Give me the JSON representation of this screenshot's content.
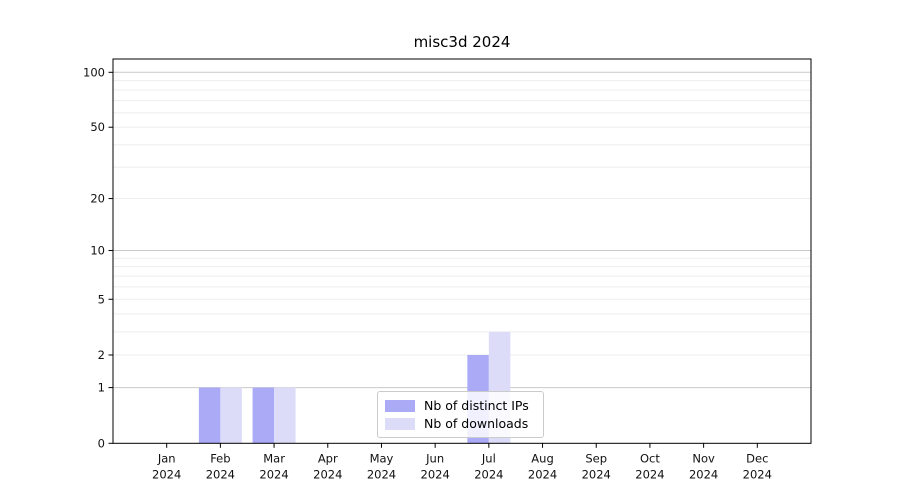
{
  "page": {
    "background_color": "#ffffff"
  },
  "chart_data": {
    "type": "bar",
    "title": "misc3d 2024",
    "xlabel": "",
    "ylabel": "",
    "year_label": "2024",
    "categories": [
      "Jan",
      "Feb",
      "Mar",
      "Apr",
      "May",
      "Jun",
      "Jul",
      "Aug",
      "Sep",
      "Oct",
      "Nov",
      "Dec"
    ],
    "series": [
      {
        "name": "Nb of distinct IPs",
        "color": "#aaaaf7",
        "values": [
          0,
          1,
          1,
          0,
          0,
          0,
          2,
          0,
          0,
          0,
          0,
          0
        ]
      },
      {
        "name": "Nb of downloads",
        "color": "#dcdcf8",
        "values": [
          0,
          1,
          1,
          0,
          0,
          0,
          3,
          0,
          0,
          0,
          0,
          0
        ]
      }
    ],
    "y_axis": {
      "scale": "log1p",
      "ylim": [
        0,
        118
      ],
      "tick_values": [
        0,
        1,
        2,
        5,
        10,
        20,
        50,
        100
      ],
      "tick_labels": [
        "0",
        "1",
        "2",
        "5",
        "10",
        "20",
        "50",
        "100"
      ]
    },
    "grid": {
      "on": true,
      "major_line_values": [
        1,
        10,
        100
      ],
      "minor_line_values": [
        2,
        3,
        4,
        5,
        6,
        7,
        8,
        9,
        20,
        30,
        40,
        50,
        60,
        70,
        80,
        90
      ],
      "major_color": "#c9c9c9",
      "minor_color": "#ededed"
    },
    "legend": {
      "position": "lower center",
      "entries": [
        "Nb of distinct IPs",
        "Nb of downloads"
      ]
    },
    "axis_color": "#000000",
    "tick_label_color": "#111111"
  }
}
